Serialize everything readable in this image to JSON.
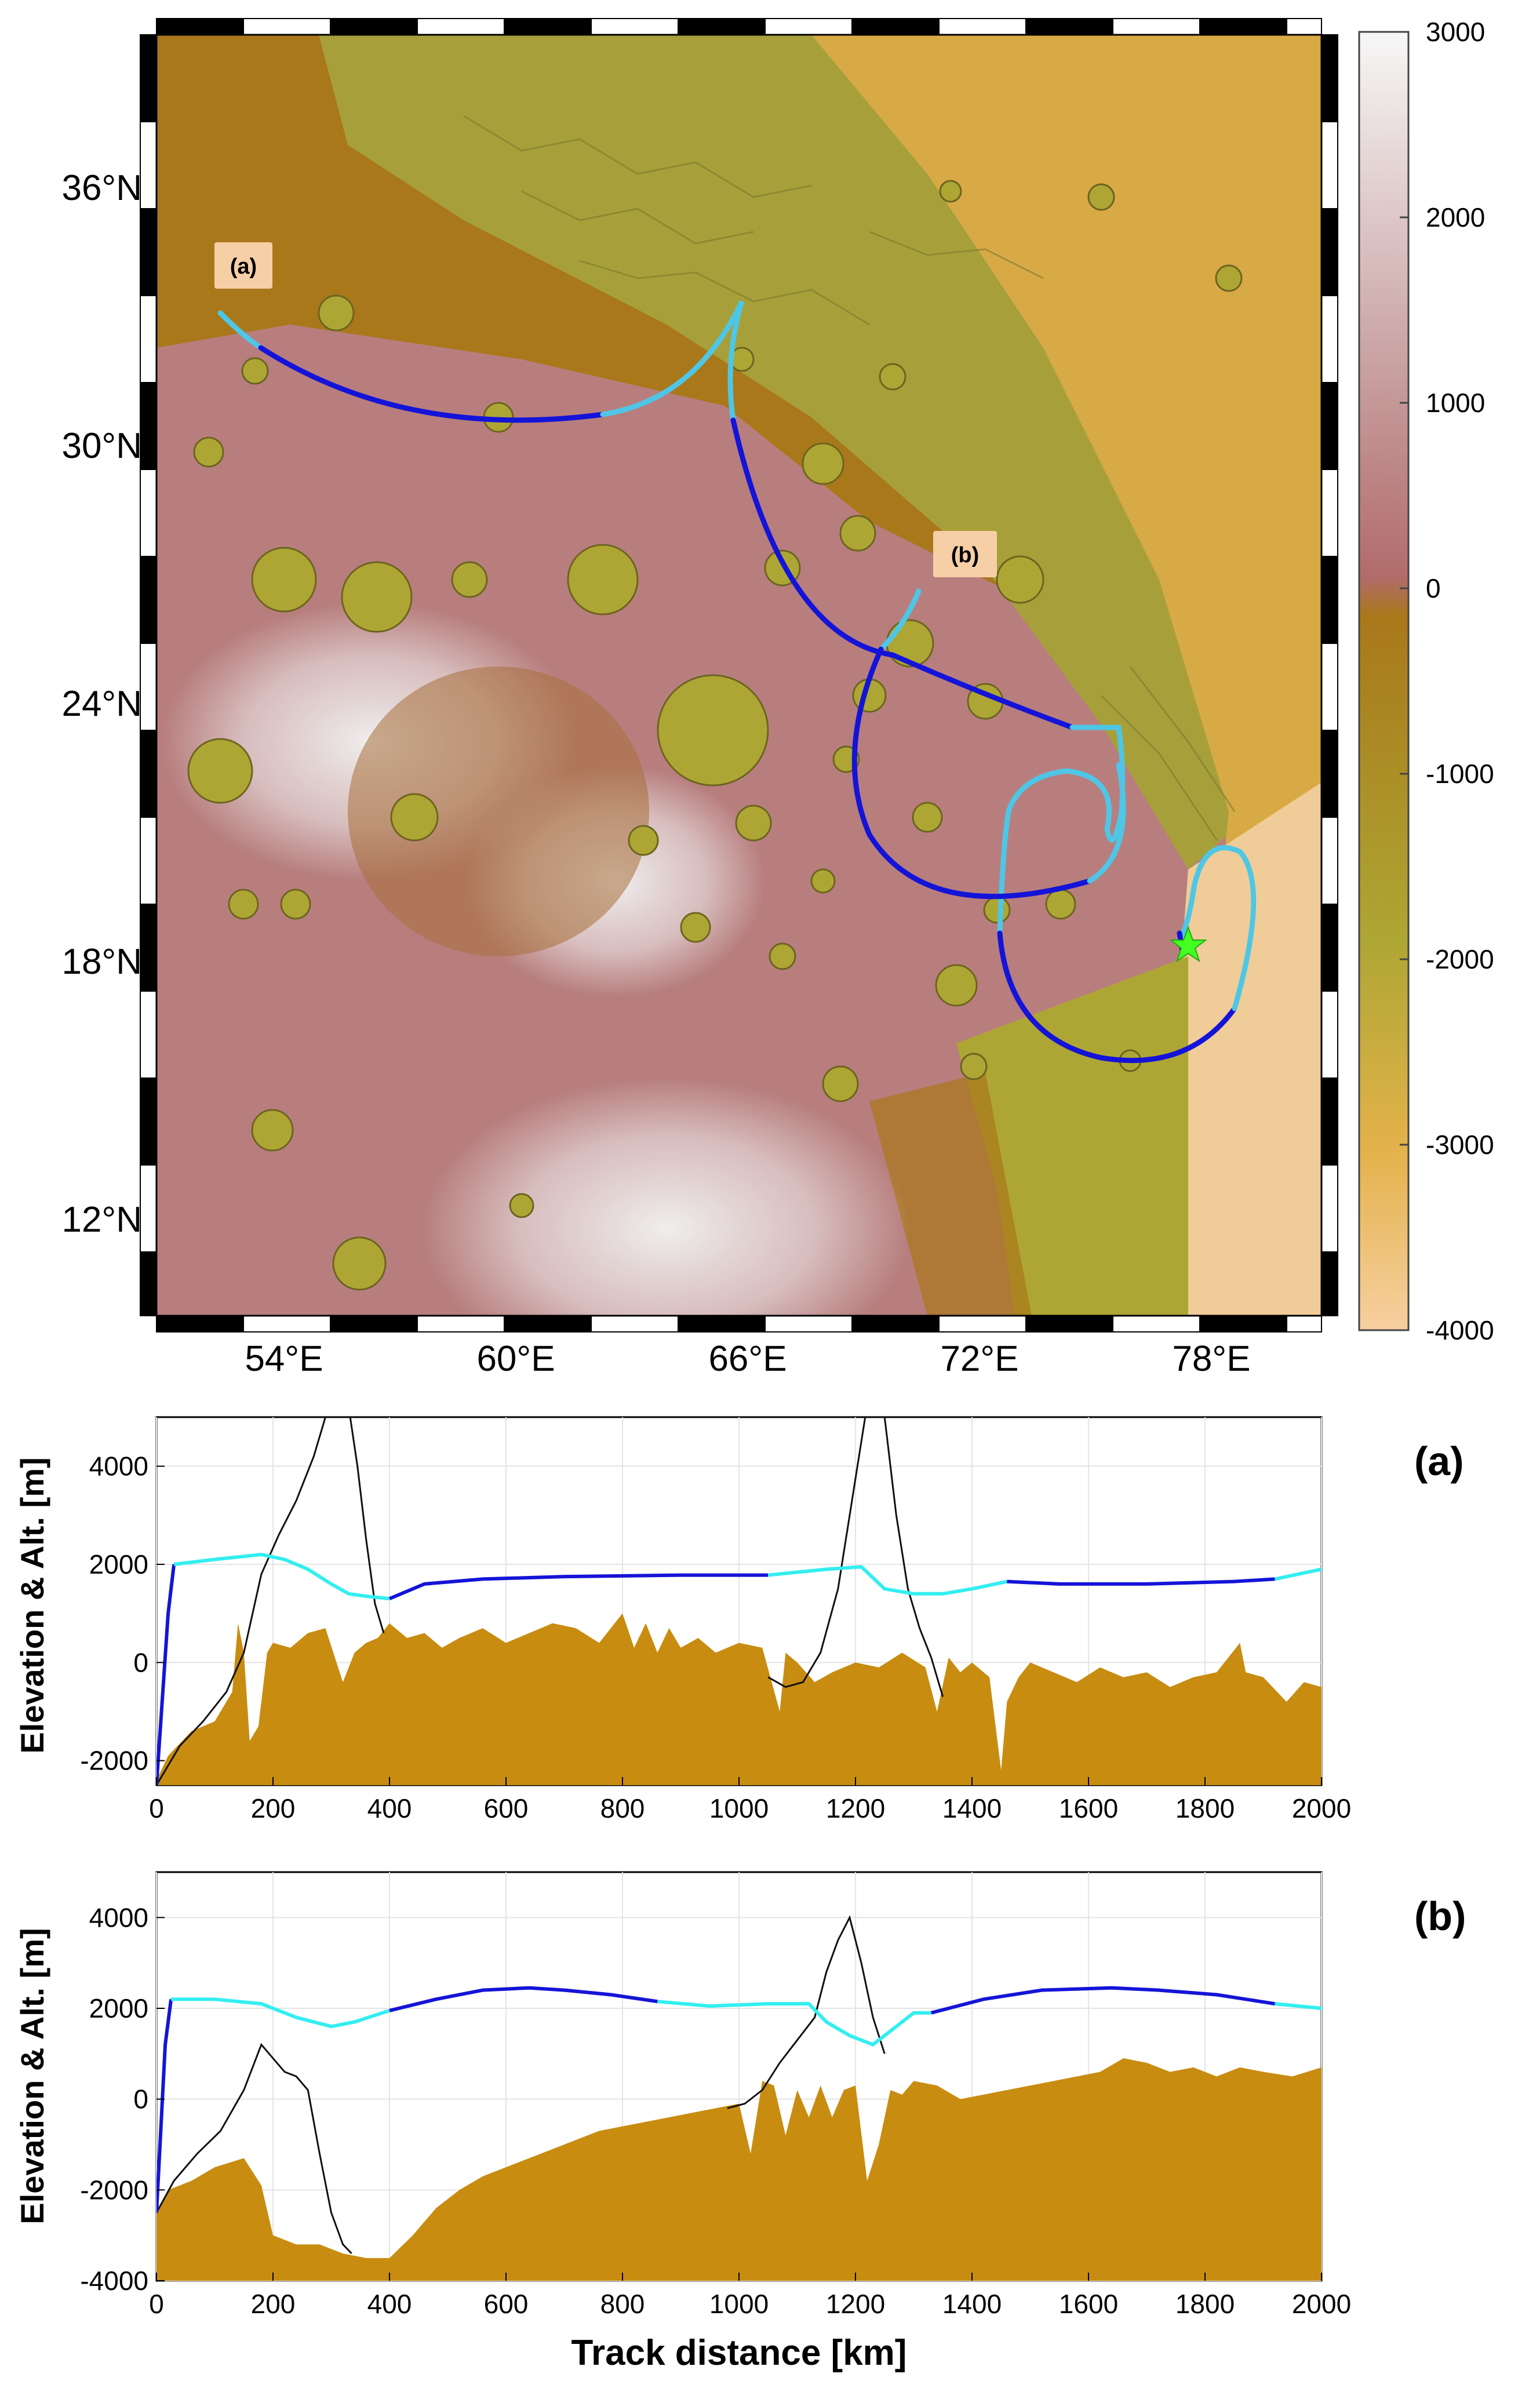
{
  "map": {
    "lat_labels": [
      "36°N",
      "30°N",
      "24°N",
      "18°N",
      "12°N"
    ],
    "lon_labels": [
      "54°E",
      "60°E",
      "66°E",
      "72°E",
      "78°E"
    ],
    "callout_a": "(a)",
    "callout_b": "(b)",
    "colors": {
      "track_dark": "#1414d8",
      "track_light": "#4ec6e6",
      "landing_star": "#44ff22",
      "callout_box": "#f7cfa6"
    }
  },
  "colorbar": {
    "tick_labels": [
      "3000",
      "2000",
      "1000",
      "0",
      "-1000",
      "-2000",
      "-3000",
      "-4000"
    ],
    "range": [
      -4000,
      3000
    ],
    "colors": [
      "#f7cfa0",
      "#e3b24a",
      "#aea634",
      "#a9781a",
      "#b77478",
      "#caa3a3",
      "#f5f5f5"
    ]
  },
  "chart_data": [
    {
      "type": "area",
      "panel_label": "(a)",
      "ylabel": "Elevation & Alt. [m]",
      "xlim": [
        0,
        2000
      ],
      "ylim": [
        -2500,
        5000
      ],
      "xticks": [
        "0",
        "200",
        "400",
        "600",
        "800",
        "1000",
        "1200",
        "1400",
        "1600",
        "1800",
        "2000"
      ],
      "yticks": [
        "-2000",
        "0",
        "2000",
        "4000"
      ],
      "terrain": {
        "color": "#c88c10",
        "x": [
          0,
          20,
          60,
          100,
          130,
          140,
          150,
          160,
          175,
          190,
          200,
          230,
          260,
          290,
          320,
          340,
          360,
          380,
          400,
          430,
          460,
          490,
          520,
          560,
          600,
          640,
          680,
          720,
          760,
          800,
          820,
          840,
          860,
          880,
          900,
          930,
          960,
          1000,
          1040,
          1070,
          1080,
          1100,
          1130,
          1160,
          1200,
          1240,
          1280,
          1320,
          1340,
          1360,
          1380,
          1400,
          1430,
          1450,
          1460,
          1480,
          1500,
          1540,
          1580,
          1620,
          1660,
          1700,
          1740,
          1780,
          1820,
          1860,
          1870,
          1900,
          1940,
          1970,
          2000
        ],
        "y": [
          -2400,
          -1900,
          -1400,
          -1200,
          -600,
          800,
          200,
          -1600,
          -1300,
          200,
          400,
          300,
          600,
          700,
          -400,
          200,
          400,
          500,
          800,
          500,
          600,
          300,
          500,
          700,
          400,
          600,
          800,
          700,
          400,
          1000,
          300,
          800,
          200,
          700,
          300,
          500,
          200,
          400,
          300,
          -1000,
          200,
          0,
          -400,
          -200,
          0,
          -100,
          200,
          -100,
          -1000,
          100,
          -200,
          0,
          -300,
          -2200,
          -800,
          -300,
          0,
          -200,
          -400,
          -100,
          -300,
          -200,
          -500,
          -300,
          -200,
          400,
          -200,
          -300,
          -800,
          -400,
          -500
        ]
      },
      "line_segments": [
        {
          "color": "#1414d8",
          "x": [
            0,
            20,
            30
          ],
          "y": [
            -2500,
            1000,
            2000
          ]
        },
        {
          "color": "#33eef0",
          "x": [
            30,
            100,
            180,
            220,
            260,
            300,
            330,
            360,
            400
          ],
          "y": [
            2000,
            2100,
            2200,
            2100,
            1900,
            1600,
            1400,
            1350,
            1300
          ]
        },
        {
          "color": "#1414d8",
          "x": [
            400,
            460,
            560,
            700,
            900,
            1050
          ],
          "y": [
            1300,
            1600,
            1700,
            1750,
            1780,
            1780
          ]
        },
        {
          "color": "#33eef0",
          "x": [
            1050,
            1150,
            1210,
            1250,
            1300,
            1350,
            1400,
            1460
          ],
          "y": [
            1780,
            1900,
            1950,
            1500,
            1400,
            1400,
            1500,
            1650
          ]
        },
        {
          "color": "#1414d8",
          "x": [
            1460,
            1550,
            1700,
            1850,
            1920
          ],
          "y": [
            1650,
            1600,
            1600,
            1650,
            1700
          ]
        },
        {
          "color": "#33eef0",
          "x": [
            1920,
            1960,
            2000
          ],
          "y": [
            1700,
            1800,
            1900
          ]
        }
      ],
      "black_curves": [
        {
          "x": [
            0,
            40,
            80,
            120,
            150,
            180,
            210,
            240,
            270,
            290,
            310,
            330,
            345,
            360,
            375,
            390
          ],
          "y": [
            -2500,
            -1700,
            -1200,
            -600,
            200,
            1800,
            2600,
            3300,
            4200,
            5000,
            6000,
            5200,
            4000,
            2500,
            1200,
            600
          ]
        },
        {
          "x": [
            1050,
            1080,
            1110,
            1140,
            1170,
            1190,
            1210,
            1230,
            1250,
            1270,
            1290,
            1310,
            1330,
            1350
          ],
          "y": [
            -300,
            -500,
            -400,
            200,
            1500,
            3000,
            4500,
            6000,
            5000,
            3000,
            1500,
            700,
            100,
            -700
          ]
        }
      ]
    },
    {
      "type": "area",
      "panel_label": "(b)",
      "ylabel": "Elevation & Alt. [m]",
      "xlabel": "Track distance [km]",
      "xlim": [
        0,
        2000
      ],
      "ylim": [
        -4000,
        5000
      ],
      "xticks": [
        "0",
        "200",
        "400",
        "600",
        "800",
        "1000",
        "1200",
        "1400",
        "1600",
        "1800",
        "2000"
      ],
      "yticks": [
        "-4000",
        "-2000",
        "0",
        "2000",
        "4000"
      ],
      "terrain": {
        "color": "#c88c10",
        "x": [
          0,
          20,
          60,
          100,
          150,
          180,
          200,
          240,
          280,
          320,
          360,
          400,
          440,
          480,
          520,
          560,
          600,
          640,
          680,
          720,
          760,
          800,
          840,
          880,
          920,
          960,
          1000,
          1020,
          1040,
          1060,
          1080,
          1100,
          1120,
          1140,
          1160,
          1180,
          1200,
          1220,
          1240,
          1260,
          1280,
          1300,
          1340,
          1380,
          1420,
          1460,
          1500,
          1540,
          1580,
          1620,
          1660,
          1700,
          1740,
          1780,
          1820,
          1860,
          1900,
          1950,
          2000
        ],
        "y": [
          -2500,
          -2000,
          -1800,
          -1500,
          -1300,
          -1900,
          -3000,
          -3200,
          -3200,
          -3400,
          -3500,
          -3500,
          -3000,
          -2400,
          -2000,
          -1700,
          -1500,
          -1300,
          -1100,
          -900,
          -700,
          -600,
          -500,
          -400,
          -300,
          -200,
          -100,
          -1200,
          400,
          300,
          -800,
          200,
          -400,
          300,
          -400,
          200,
          300,
          -1800,
          -1000,
          200,
          100,
          400,
          300,
          0,
          100,
          200,
          300,
          400,
          500,
          600,
          900,
          800,
          600,
          700,
          500,
          700,
          600,
          500,
          700
        ]
      },
      "line_segments": [
        {
          "color": "#1414d8",
          "x": [
            0,
            15,
            25
          ],
          "y": [
            -2500,
            1200,
            2200
          ]
        },
        {
          "color": "#33eef0",
          "x": [
            25,
            100,
            180,
            240,
            300,
            340,
            400
          ],
          "y": [
            2200,
            2200,
            2100,
            1800,
            1600,
            1700,
            1950
          ]
        },
        {
          "color": "#1414d8",
          "x": [
            400,
            480,
            560,
            640,
            700,
            780,
            860
          ],
          "y": [
            1950,
            2200,
            2400,
            2450,
            2400,
            2300,
            2150
          ]
        },
        {
          "color": "#33eef0",
          "x": [
            860,
            950,
            1050,
            1120,
            1150,
            1190,
            1230,
            1270,
            1300,
            1330
          ],
          "y": [
            2150,
            2050,
            2100,
            2100,
            1700,
            1400,
            1200,
            1600,
            1900,
            1900
          ]
        },
        {
          "color": "#1414d8",
          "x": [
            1330,
            1420,
            1520,
            1640,
            1720,
            1820,
            1920
          ],
          "y": [
            1900,
            2200,
            2400,
            2450,
            2400,
            2300,
            2100
          ]
        },
        {
          "color": "#33eef0",
          "x": [
            1920,
            1960,
            2000
          ],
          "y": [
            2100,
            2050,
            2000
          ]
        }
      ],
      "black_curves": [
        {
          "x": [
            0,
            30,
            70,
            110,
            150,
            180,
            200,
            220,
            240,
            260,
            280,
            300,
            320,
            335
          ],
          "y": [
            -2500,
            -1800,
            -1200,
            -700,
            200,
            1200,
            900,
            600,
            500,
            200,
            -1200,
            -2500,
            -3200,
            -3400
          ]
        },
        {
          "x": [
            980,
            1010,
            1040,
            1070,
            1100,
            1130,
            1150,
            1170,
            1190,
            1210,
            1230,
            1250
          ],
          "y": [
            -200,
            -100,
            200,
            800,
            1300,
            1800,
            2800,
            3500,
            4000,
            3000,
            1800,
            1000
          ]
        }
      ]
    }
  ]
}
